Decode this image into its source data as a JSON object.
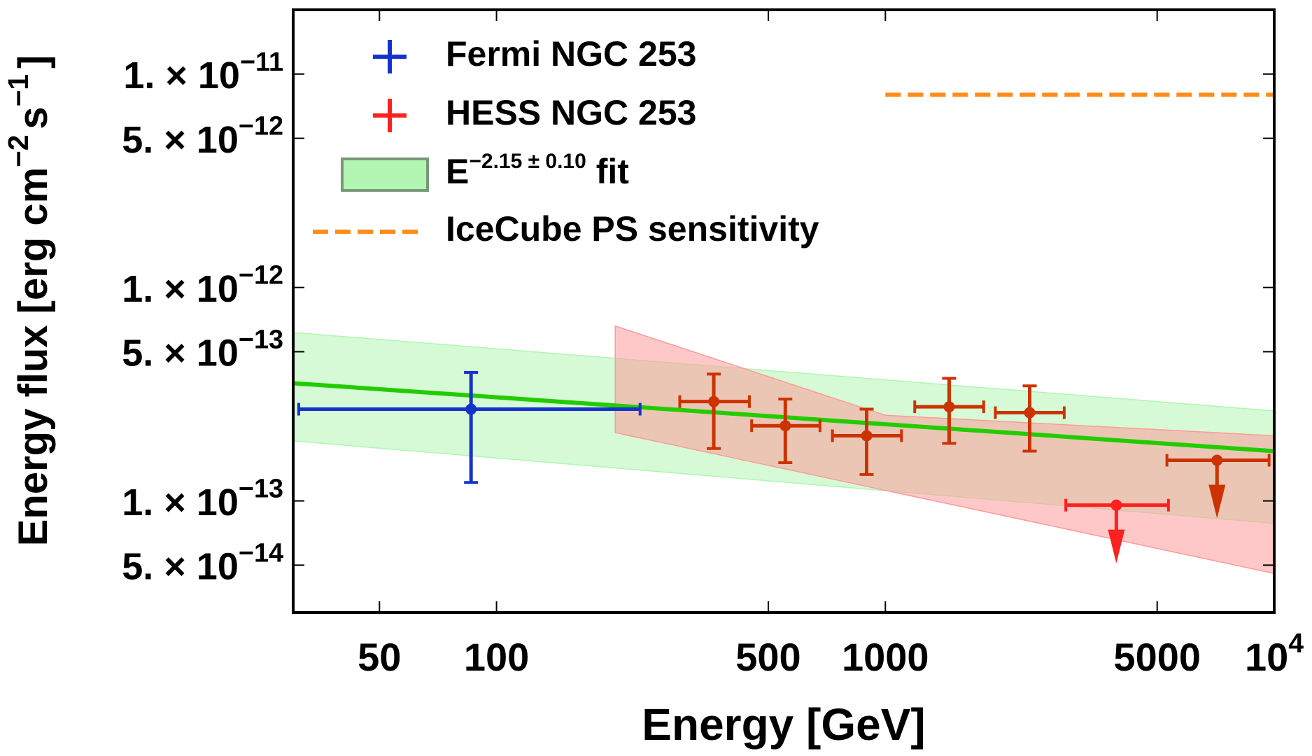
{
  "chart_data": {
    "type": "scatter",
    "xlabel": "Energy [GeV]",
    "ylabel": [
      "Energy flux [erg cm",
      "−2",
      "s",
      "−1",
      "]"
    ],
    "xlog": true,
    "ylog": true,
    "xlim": [
      30,
      10000
    ],
    "ylim": [
      3e-14,
      2e-11
    ],
    "xticks": [
      50,
      100,
      500,
      1000,
      5000,
      {
        "value": 10000,
        "label": "10",
        "sup": "4"
      }
    ],
    "yticks": [
      {
        "value": 1e-11,
        "label": "1. × 10",
        "sup": "−11"
      },
      {
        "value": 5e-12,
        "label": "5. × 10",
        "sup": "−12"
      },
      {
        "value": 1e-12,
        "label": "1. × 10",
        "sup": "−12"
      },
      {
        "value": 5e-13,
        "label": "5. × 10",
        "sup": "−13"
      },
      {
        "value": 1e-13,
        "label": "1. × 10",
        "sup": "−13"
      },
      {
        "value": 5e-14,
        "label": "5. × 10",
        "sup": "−14"
      }
    ],
    "legend": "upper left",
    "series": [
      {
        "name": "Fermi NGC 253",
        "color": "#1433cc",
        "x": [
          86
        ],
        "values": [
          2.69e-13
        ],
        "xlow": [
          31
        ],
        "xhigh": [
          234
        ],
        "ylow": [
          1.22e-13
        ],
        "yhigh": [
          4e-13
        ],
        "upper_limit": [
          false
        ]
      },
      {
        "name": "HESS NGC 253",
        "color": "#cc3300",
        "legend_color": "#ff2020",
        "x": [
          362,
          553,
          895,
          1459,
          2350,
          3926,
          7128
        ],
        "values": [
          2.92e-13,
          2.25e-13,
          2.02e-13,
          2.76e-13,
          2.59e-13,
          9.55e-14,
          1.55e-13
        ],
        "xlow": [
          296,
          453,
          731,
          1190,
          1918,
          2911,
          5297
        ],
        "xhigh": [
          447,
          679,
          1100,
          1790,
          2884,
          5346,
          9700
        ],
        "ylow": [
          1.76e-13,
          1.51e-13,
          1.33e-13,
          1.86e-13,
          1.71e-13,
          null,
          null
        ],
        "yhigh": [
          3.93e-13,
          3e-13,
          2.69e-13,
          3.75e-13,
          3.46e-13,
          null,
          null
        ],
        "upper_limit": [
          false,
          false,
          false,
          false,
          false,
          true,
          true
        ],
        "limit_colors": [
          null,
          null,
          null,
          null,
          null,
          "#ff2020",
          "#cc3300"
        ]
      }
    ],
    "fit": {
      "name": "E",
      "sup": "−2.15 ± 0.10",
      "suffix": " fit",
      "color": "#22cc00",
      "band_color": "#b3f5b3",
      "x": [
        30,
        10000
      ],
      "values": [
        3.56e-13,
        1.71e-13
      ],
      "upper": [
        6.15e-13,
        2.64e-13
      ],
      "lower": [
        1.91e-13,
        7.85e-14
      ]
    },
    "hess_band": {
      "color": "#ff9a9a",
      "x": [
        202,
        1000,
        10000
      ],
      "upper": [
        6.6e-13,
        2.52e-13,
        2.02e-13
      ],
      "lower": [
        2.09e-13,
        1.12e-13,
        4.57e-14
      ]
    },
    "sensitivity": {
      "name": "IceCube PS sensitivity",
      "color": "#ff8c1a",
      "x": [
        1000,
        10000
      ],
      "values": [
        8e-12,
        8e-12
      ]
    }
  }
}
